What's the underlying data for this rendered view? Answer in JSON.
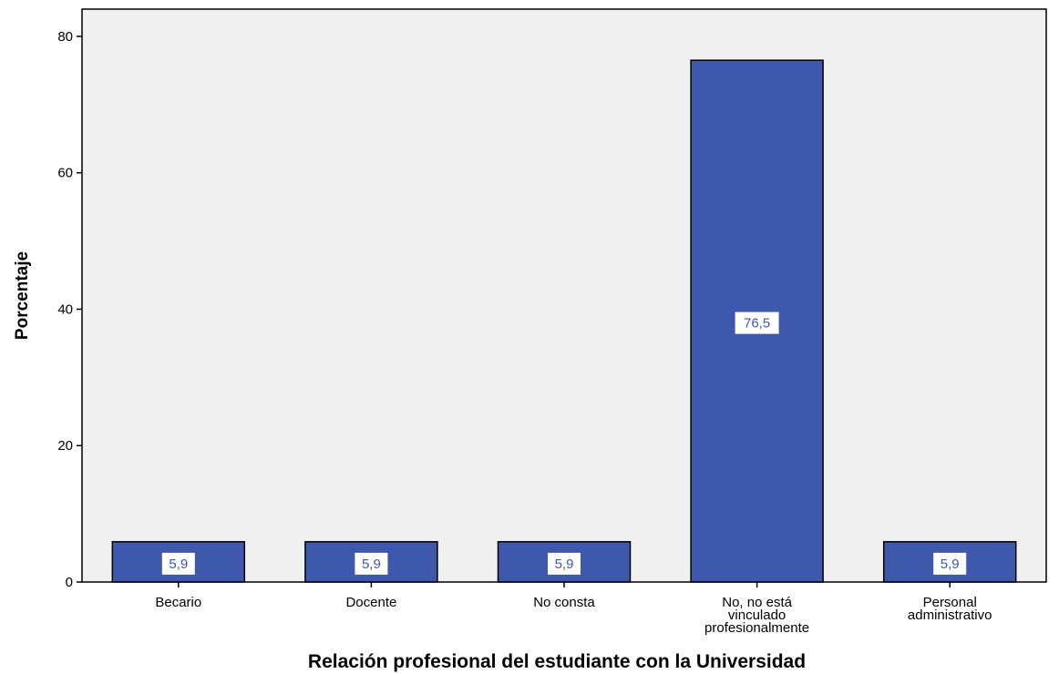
{
  "chart_data": {
    "type": "bar",
    "title": "",
    "xlabel": "Relación profesional del estudiante con la Universidad",
    "ylabel": "Porcentaje",
    "categories": [
      "Becario",
      "Docente",
      "No consta",
      "No, no está vinculado profesionalmente",
      "Personal administrativo"
    ],
    "category_lines": [
      [
        "Becario"
      ],
      [
        "Docente"
      ],
      [
        "No consta"
      ],
      [
        "No, no está",
        "vinculado",
        "profesionalmente"
      ],
      [
        "Personal",
        "administrativo"
      ]
    ],
    "values": [
      5.9,
      5.9,
      5.9,
      76.5,
      5.9
    ],
    "data_labels": [
      "5,9",
      "5,9",
      "5,9",
      "76,5",
      "5,9"
    ],
    "ylim": [
      0,
      84
    ],
    "yticks": [
      0,
      20,
      40,
      60,
      80
    ],
    "grid": false,
    "colors": {
      "bar": "#3e58ac",
      "bar_stroke": "#000000",
      "plot_bg": "#f0f0f0",
      "label_box": "#ffffff",
      "label_text": "#3e58ac"
    }
  }
}
